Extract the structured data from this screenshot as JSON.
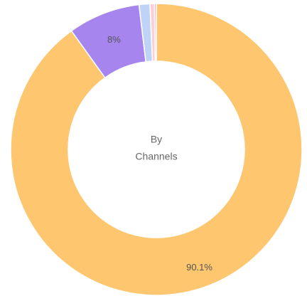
{
  "chart_data": {
    "type": "pie",
    "variant": "donut",
    "center_text": [
      "By",
      "Channels"
    ],
    "slices": [
      {
        "value": 90.1,
        "label": "90.1%",
        "color": "#FDC66F"
      },
      {
        "value": 8.0,
        "label": "8%",
        "color": "#A685EE"
      },
      {
        "value": 1.2,
        "label": "",
        "color": "#BFD3F7"
      },
      {
        "value": 0.5,
        "label": "",
        "color": "#FCCFD8"
      },
      {
        "value": 0.2,
        "label": "",
        "color": "#F7A1B8"
      }
    ],
    "start_angle_deg": 0,
    "direction": "clockwise",
    "legend": "none"
  }
}
